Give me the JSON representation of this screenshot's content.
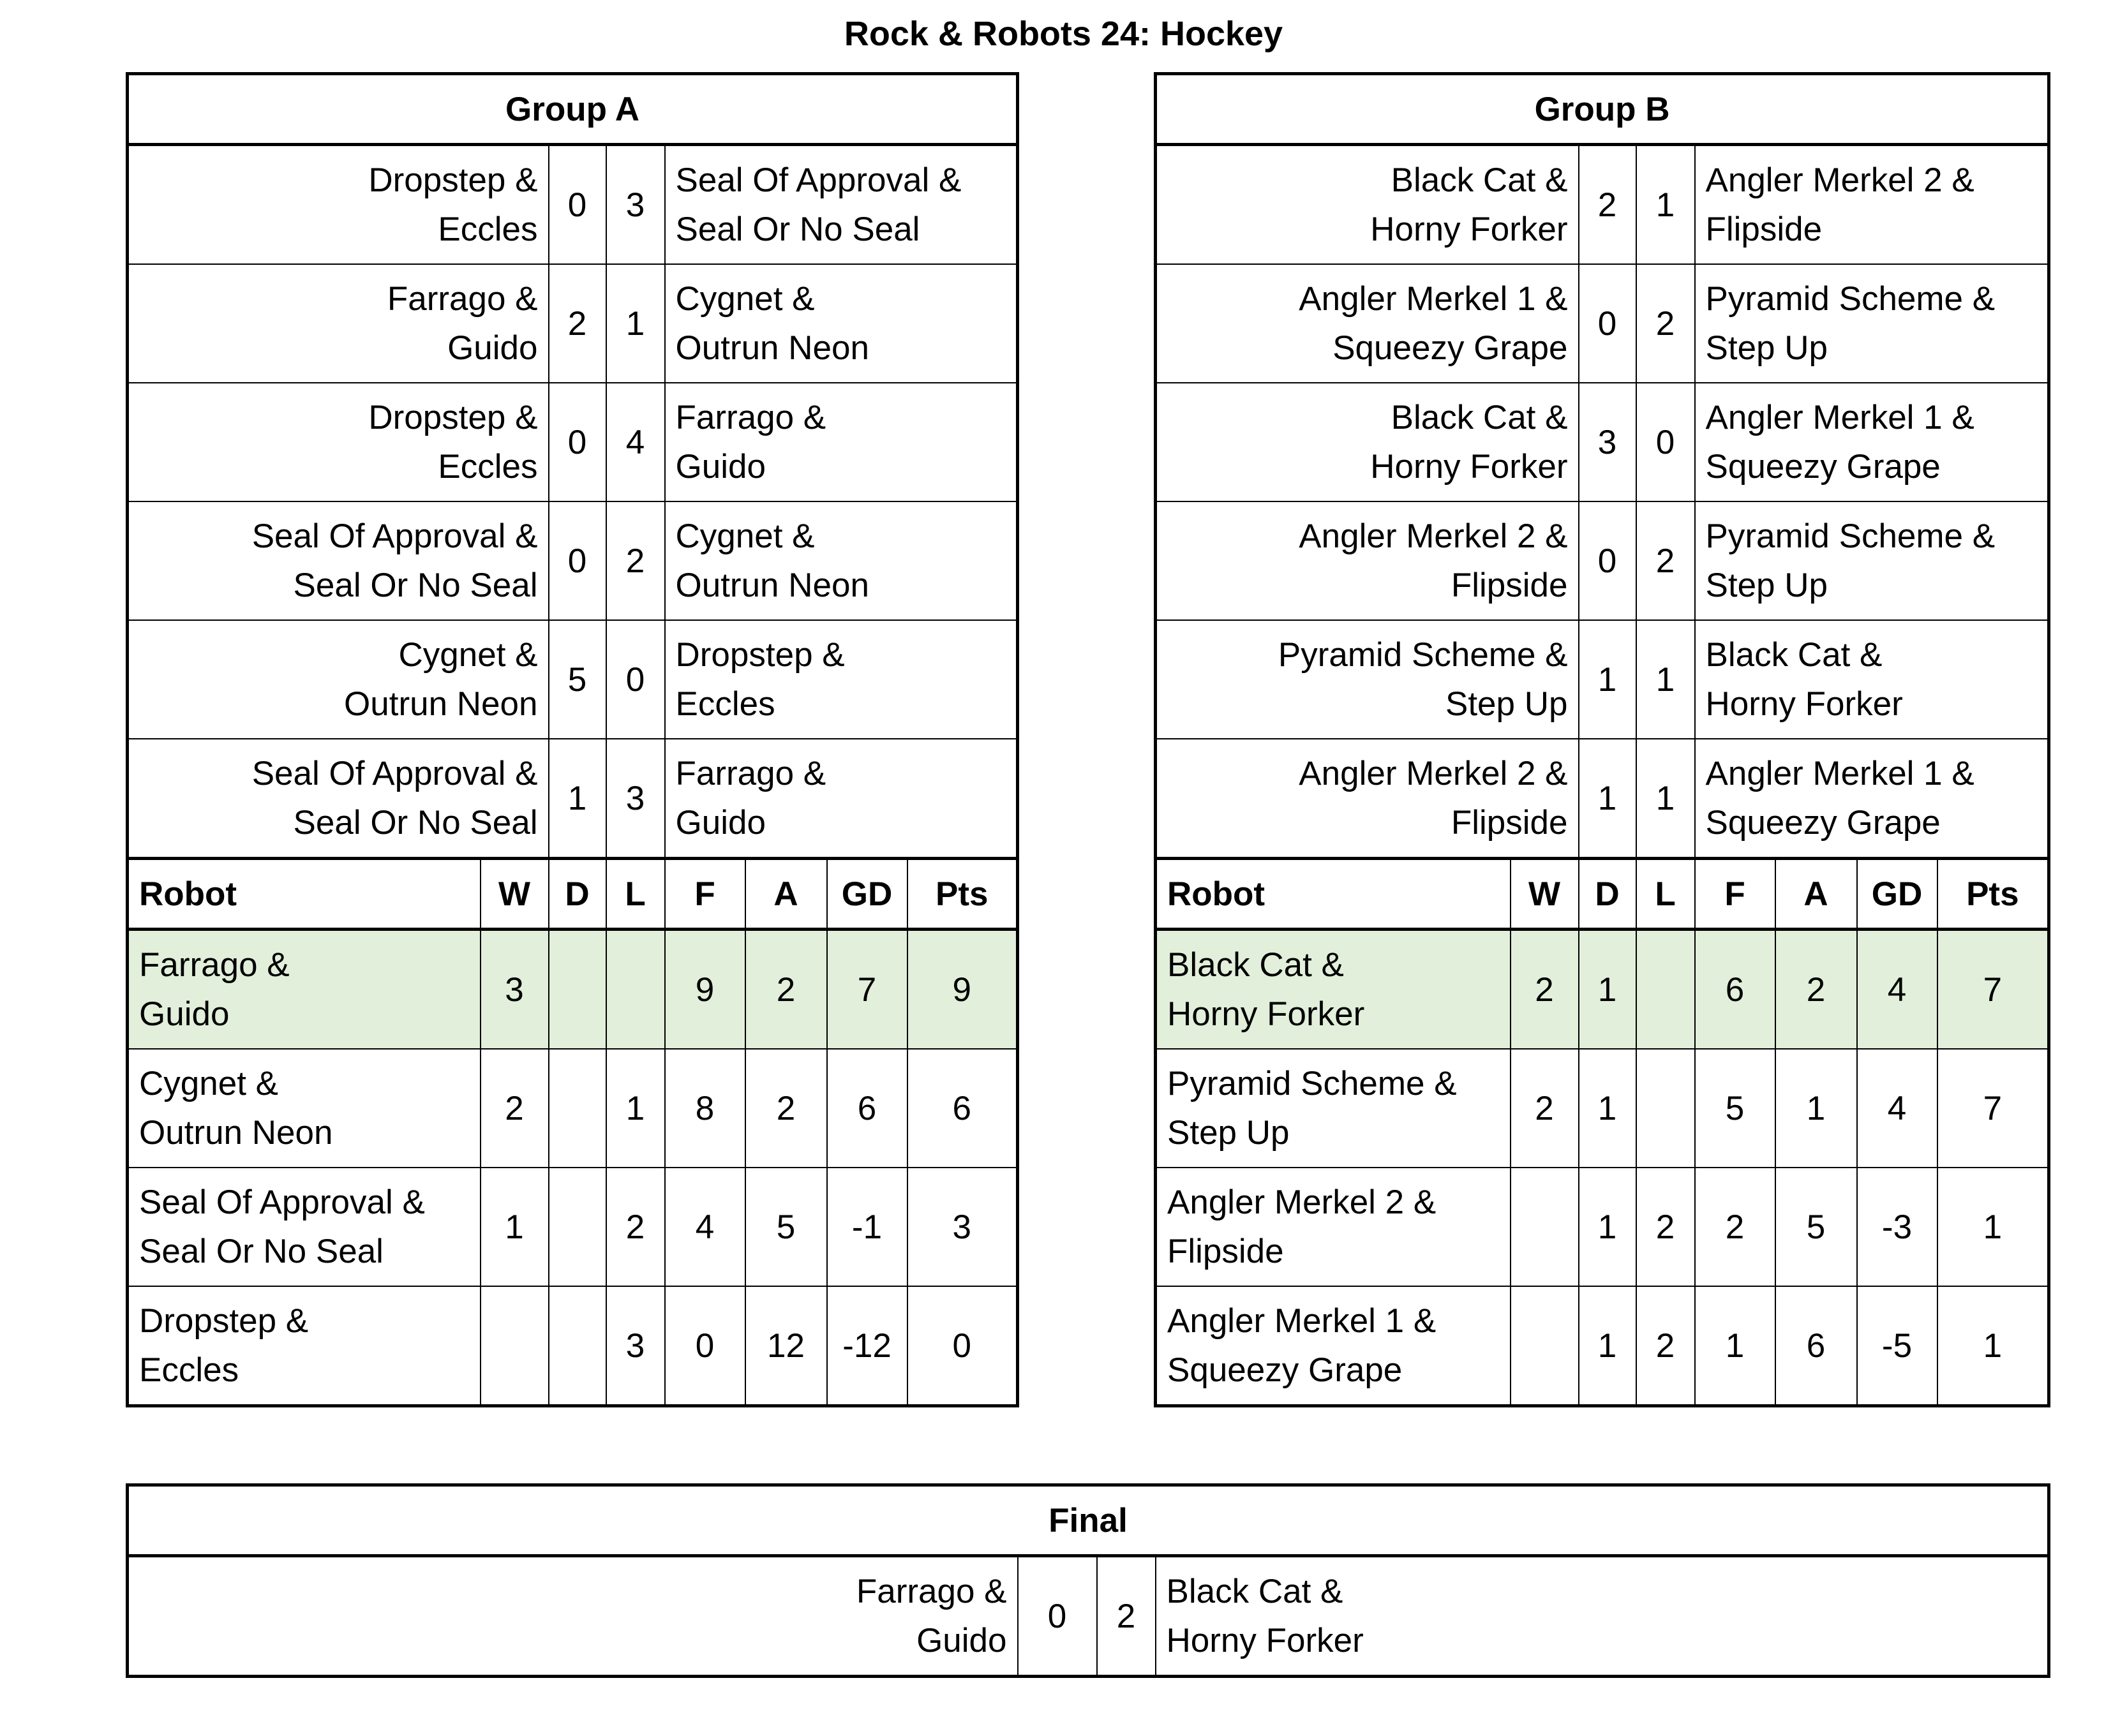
{
  "title": "Rock & Robots 24: Hockey",
  "highlight_color": "#E2EFDA",
  "standings_headers": [
    "Robot",
    "W",
    "D",
    "L",
    "F",
    "A",
    "GD",
    "Pts"
  ],
  "groups": [
    {
      "name": "Group A",
      "matches": [
        {
          "home": "Dropstep &\nEccles",
          "hs": "0",
          "as": "3",
          "away": "Seal Of Approval &\nSeal Or No Seal"
        },
        {
          "home": "Farrago &\nGuido",
          "hs": "2",
          "as": "1",
          "away": "Cygnet &\nOutrun Neon"
        },
        {
          "home": "Dropstep &\nEccles",
          "hs": "0",
          "as": "4",
          "away": "Farrago &\nGuido"
        },
        {
          "home": "Seal Of Approval &\nSeal Or No Seal",
          "hs": "0",
          "as": "2",
          "away": "Cygnet &\nOutrun Neon"
        },
        {
          "home": "Cygnet &\nOutrun Neon",
          "hs": "5",
          "as": "0",
          "away": "Dropstep &\nEccles"
        },
        {
          "home": "Seal Of Approval &\nSeal Or No Seal",
          "hs": "1",
          "as": "3",
          "away": "Farrago &\nGuido"
        }
      ],
      "standings": [
        {
          "robot": "Farrago &\nGuido",
          "w": "3",
          "d": "",
          "l": "",
          "f": "9",
          "a": "2",
          "gd": "7",
          "pts": "9",
          "highlight": true
        },
        {
          "robot": "Cygnet &\nOutrun Neon",
          "w": "2",
          "d": "",
          "l": "1",
          "f": "8",
          "a": "2",
          "gd": "6",
          "pts": "6"
        },
        {
          "robot": "Seal Of Approval &\nSeal Or No Seal",
          "w": "1",
          "d": "",
          "l": "2",
          "f": "4",
          "a": "5",
          "gd": "-1",
          "pts": "3"
        },
        {
          "robot": "Dropstep &\nEccles",
          "w": "",
          "d": "",
          "l": "3",
          "f": "0",
          "a": "12",
          "gd": "-12",
          "pts": "0"
        }
      ]
    },
    {
      "name": "Group B",
      "matches": [
        {
          "home": "Black Cat &\nHorny Forker",
          "hs": "2",
          "as": "1",
          "away": "Angler Merkel 2 &\nFlipside"
        },
        {
          "home": "Angler Merkel 1 &\nSqueezy Grape",
          "hs": "0",
          "as": "2",
          "away": "Pyramid Scheme &\nStep Up"
        },
        {
          "home": "Black Cat &\nHorny Forker",
          "hs": "3",
          "as": "0",
          "away": "Angler Merkel 1 &\nSqueezy Grape"
        },
        {
          "home": "Angler Merkel 2 &\nFlipside",
          "hs": "0",
          "as": "2",
          "away": "Pyramid Scheme &\nStep Up"
        },
        {
          "home": "Pyramid Scheme &\nStep Up",
          "hs": "1",
          "as": "1",
          "away": "Black Cat &\nHorny Forker"
        },
        {
          "home": "Angler Merkel 2 &\nFlipside",
          "hs": "1",
          "as": "1",
          "away": "Angler Merkel 1 &\nSqueezy Grape"
        }
      ],
      "standings": [
        {
          "robot": "Black Cat &\nHorny Forker",
          "w": "2",
          "d": "1",
          "l": "",
          "f": "6",
          "a": "2",
          "gd": "4",
          "pts": "7",
          "highlight": true
        },
        {
          "robot": "Pyramid Scheme &\nStep Up",
          "w": "2",
          "d": "1",
          "l": "",
          "f": "5",
          "a": "1",
          "gd": "4",
          "pts": "7"
        },
        {
          "robot": "Angler Merkel 2 &\nFlipside",
          "w": "",
          "d": "1",
          "l": "2",
          "f": "2",
          "a": "5",
          "gd": "-3",
          "pts": "1"
        },
        {
          "robot": "Angler Merkel 1 &\nSqueezy Grape",
          "w": "",
          "d": "1",
          "l": "2",
          "f": "1",
          "a": "6",
          "gd": "-5",
          "pts": "1"
        }
      ]
    }
  ],
  "final": {
    "name": "Final",
    "home": "Farrago &\nGuido",
    "hs": "0",
    "as": "2",
    "away": "Black Cat &\nHorny Forker"
  }
}
